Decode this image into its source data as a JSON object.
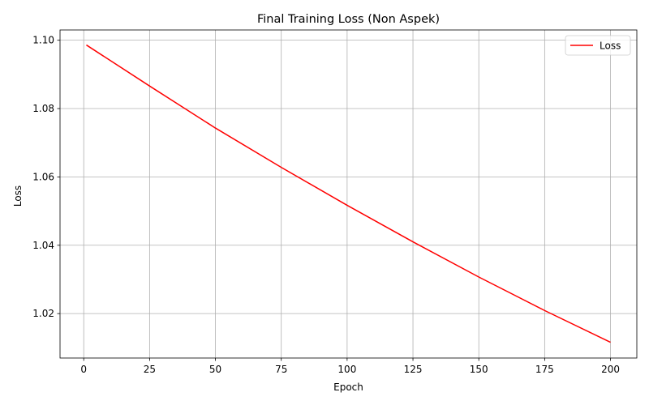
{
  "chart_data": {
    "type": "line",
    "title": "Final Training Loss (Non Aspek)",
    "xlabel": "Epoch",
    "ylabel": "Loss",
    "xlim": [
      -9,
      210
    ],
    "ylim": [
      1.007,
      1.103
    ],
    "xticks": [
      0,
      25,
      50,
      75,
      100,
      125,
      150,
      175,
      200
    ],
    "yticks": [
      1.02,
      1.04,
      1.06,
      1.08,
      1.1
    ],
    "ytick_labels": [
      "1.02",
      "1.04",
      "1.06",
      "1.08",
      "1.10"
    ],
    "grid": true,
    "legend_position": "top-right",
    "series": [
      {
        "name": "Loss",
        "color": "#ff0000",
        "x": [
          1,
          25,
          50,
          75,
          100,
          125,
          150,
          175,
          200
        ],
        "y": [
          1.0986,
          1.0866,
          1.0743,
          1.0628,
          1.0517,
          1.041,
          1.0307,
          1.0209,
          1.0116
        ]
      }
    ]
  }
}
